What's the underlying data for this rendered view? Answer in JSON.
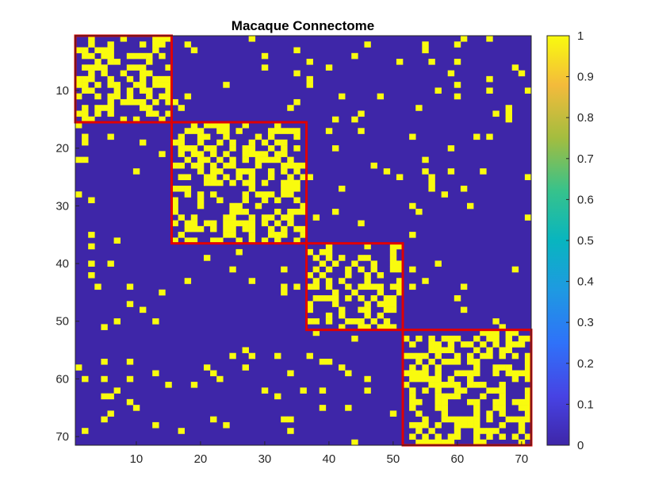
{
  "chart_data": {
    "type": "heatmap",
    "title": "Macaque Connectome",
    "size": 71,
    "x_ticks": [
      10,
      20,
      30,
      40,
      50,
      60,
      70
    ],
    "y_ticks": [
      10,
      20,
      30,
      40,
      50,
      60,
      70
    ],
    "value_range": [
      0,
      1
    ],
    "colormap": "parula",
    "low_color": "#3E26A8",
    "high_color": "#F9FB0E",
    "colorbar": {
      "ticks": [
        0,
        0.1,
        0.2,
        0.3,
        0.4,
        0.5,
        0.6,
        0.7,
        0.8,
        0.9,
        1
      ],
      "labels": [
        "0",
        "0.1",
        "0.2",
        "0.3",
        "0.4",
        "0.5",
        "0.6",
        "0.7",
        "0.8",
        "0.9",
        "1"
      ]
    },
    "module_boxes": [
      {
        "start": 1,
        "end": 15
      },
      {
        "start": 16,
        "end": 36
      },
      {
        "start": 37,
        "end": 51
      },
      {
        "start": 52,
        "end": 71
      }
    ],
    "module_box_color": "#E00000",
    "connections_note": "binary adjacency; 1 = connection",
    "sample_connections": [
      [
        3,
        1
      ],
      [
        3,
        2
      ],
      [
        3,
        4
      ],
      [
        4,
        3
      ],
      [
        4,
        5
      ],
      [
        5,
        4
      ],
      [
        6,
        4
      ],
      [
        2,
        3
      ],
      [
        8,
        2
      ],
      [
        8,
        6
      ],
      [
        9,
        10
      ],
      [
        10,
        9
      ],
      [
        11,
        12
      ],
      [
        12,
        11
      ],
      [
        12,
        13
      ],
      [
        13,
        12
      ],
      [
        14,
        13
      ],
      [
        15,
        14
      ],
      [
        14,
        1
      ],
      [
        1,
        14
      ],
      [
        13,
        2
      ],
      [
        2,
        13
      ],
      [
        7,
        11
      ],
      [
        11,
        7
      ],
      [
        10,
        15
      ],
      [
        15,
        10
      ],
      [
        18,
        17
      ],
      [
        17,
        18
      ],
      [
        19,
        20
      ],
      [
        20,
        19
      ],
      [
        21,
        22
      ],
      [
        22,
        21
      ],
      [
        23,
        24
      ],
      [
        24,
        23
      ],
      [
        25,
        26
      ],
      [
        26,
        25
      ],
      [
        27,
        28
      ],
      [
        28,
        27
      ],
      [
        29,
        30
      ],
      [
        30,
        29
      ],
      [
        31,
        32
      ],
      [
        32,
        31
      ],
      [
        33,
        34
      ],
      [
        34,
        33
      ],
      [
        35,
        36
      ],
      [
        36,
        35
      ],
      [
        17,
        20
      ],
      [
        20,
        17
      ],
      [
        22,
        25
      ],
      [
        25,
        22
      ],
      [
        26,
        30
      ],
      [
        30,
        26
      ],
      [
        28,
        33
      ],
      [
        33,
        28
      ],
      [
        19,
        23
      ],
      [
        23,
        19
      ],
      [
        31,
        35
      ],
      [
        35,
        31
      ],
      [
        38,
        39
      ],
      [
        39,
        38
      ],
      [
        40,
        41
      ],
      [
        41,
        40
      ],
      [
        42,
        43
      ],
      [
        43,
        42
      ],
      [
        44,
        45
      ],
      [
        45,
        44
      ],
      [
        46,
        47
      ],
      [
        47,
        46
      ],
      [
        48,
        49
      ],
      [
        49,
        48
      ],
      [
        39,
        42
      ],
      [
        42,
        39
      ],
      [
        43,
        46
      ],
      [
        46,
        43
      ],
      [
        40,
        44
      ],
      [
        44,
        40
      ],
      [
        47,
        50
      ],
      [
        50,
        47
      ],
      [
        53,
        54
      ],
      [
        54,
        53
      ],
      [
        55,
        56
      ],
      [
        56,
        55
      ],
      [
        57,
        58
      ],
      [
        58,
        57
      ],
      [
        59,
        60
      ],
      [
        60,
        59
      ],
      [
        61,
        62
      ],
      [
        62,
        61
      ],
      [
        63,
        64
      ],
      [
        64,
        63
      ],
      [
        65,
        66
      ],
      [
        66,
        65
      ],
      [
        67,
        68
      ],
      [
        68,
        67
      ],
      [
        69,
        70
      ],
      [
        70,
        69
      ],
      [
        70,
        71
      ],
      [
        71,
        70
      ],
      [
        56,
        60
      ],
      [
        60,
        56
      ],
      [
        58,
        63
      ],
      [
        63,
        58
      ],
      [
        62,
        67
      ],
      [
        67,
        62
      ],
      [
        54,
        57
      ],
      [
        57,
        54
      ],
      [
        64,
        69
      ],
      [
        69,
        64
      ],
      [
        35,
        3
      ],
      [
        3,
        35
      ],
      [
        44,
        4
      ],
      [
        4,
        44
      ],
      [
        60,
        2
      ],
      [
        2,
        60
      ],
      [
        14,
        45
      ],
      [
        45,
        14
      ],
      [
        62,
        30
      ],
      [
        30,
        62
      ],
      [
        51,
        5
      ],
      [
        5,
        51
      ],
      [
        56,
        25
      ],
      [
        25,
        56
      ],
      [
        44,
        53
      ],
      [
        53,
        44
      ],
      [
        9,
        60
      ],
      [
        60,
        9
      ],
      [
        33,
        45
      ],
      [
        45,
        33
      ],
      [
        43,
        38
      ],
      [
        57,
        40
      ],
      [
        40,
        57
      ],
      [
        28,
        1
      ],
      [
        1,
        28
      ],
      [
        5,
        60
      ],
      [
        60,
        5
      ],
      [
        65,
        10
      ],
      [
        10,
        65
      ],
      [
        13,
        68
      ],
      [
        68,
        13
      ],
      [
        46,
        60
      ],
      [
        60,
        46
      ],
      [
        66,
        50
      ],
      [
        50,
        66
      ]
    ]
  }
}
